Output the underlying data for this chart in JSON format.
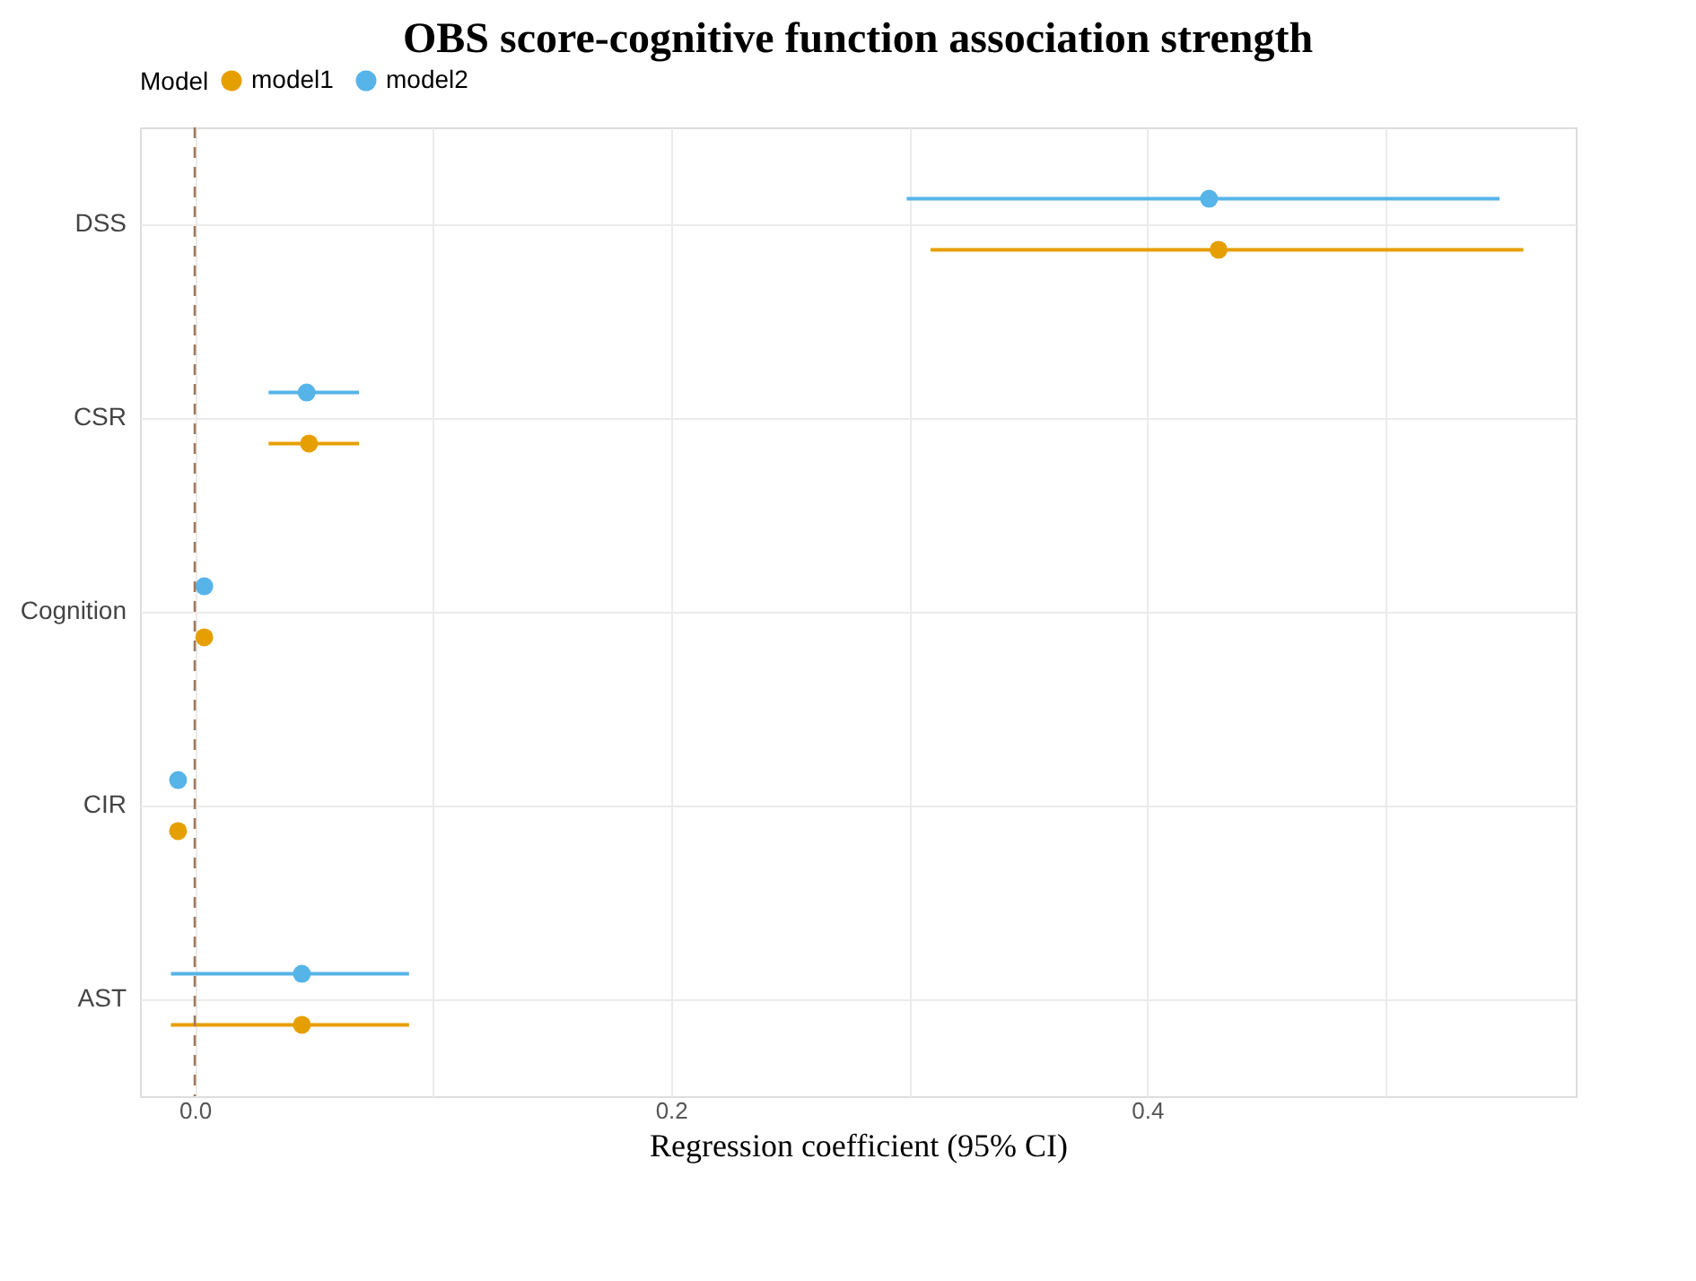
{
  "chart_data": {
    "type": "scatter",
    "orientation": "horizontal",
    "title": "OBS score-cognitive function association strength",
    "xlabel": "Regression coefficient (95% CI)",
    "legend_title": "Model",
    "legend": "top",
    "grid": true,
    "marker": "circle",
    "categories": [
      "DSS",
      "CSR",
      "Cognition",
      "CIR",
      "AST"
    ],
    "xlim": [
      -0.023,
      0.58
    ],
    "xticks": [
      {
        "value": 0,
        "label": "0.0"
      },
      {
        "value": 0.1,
        "label": null
      },
      {
        "value": 0.2,
        "label": "0.2"
      },
      {
        "value": 0.3,
        "label": null
      },
      {
        "value": 0.4,
        "label": "0.4"
      },
      {
        "value": 0.5,
        "label": null
      }
    ],
    "ref_lines": [
      {
        "axis": "x",
        "value": 0,
        "color": "#a0785a",
        "line_style": "dashed"
      }
    ],
    "series": [
      {
        "name": "model1",
        "color": "#e69f00",
        "values": [
          0.43,
          0.048,
          0.004,
          -0.007,
          0.045
        ],
        "errors": [
          [
            0.309,
            0.558
          ],
          [
            0.031,
            0.069
          ],
          [
            0.001,
            0.007
          ],
          [
            -0.009,
            -0.005
          ],
          [
            -0.01,
            0.09
          ]
        ]
      },
      {
        "name": "model2",
        "color": "#56b4e9",
        "values": [
          0.426,
          0.047,
          0.004,
          -0.007,
          0.045
        ],
        "errors": [
          [
            0.299,
            0.548
          ],
          [
            0.031,
            0.069
          ],
          [
            0.001,
            0.007
          ],
          [
            -0.009,
            -0.005
          ],
          [
            -0.01,
            0.09
          ]
        ]
      }
    ]
  }
}
